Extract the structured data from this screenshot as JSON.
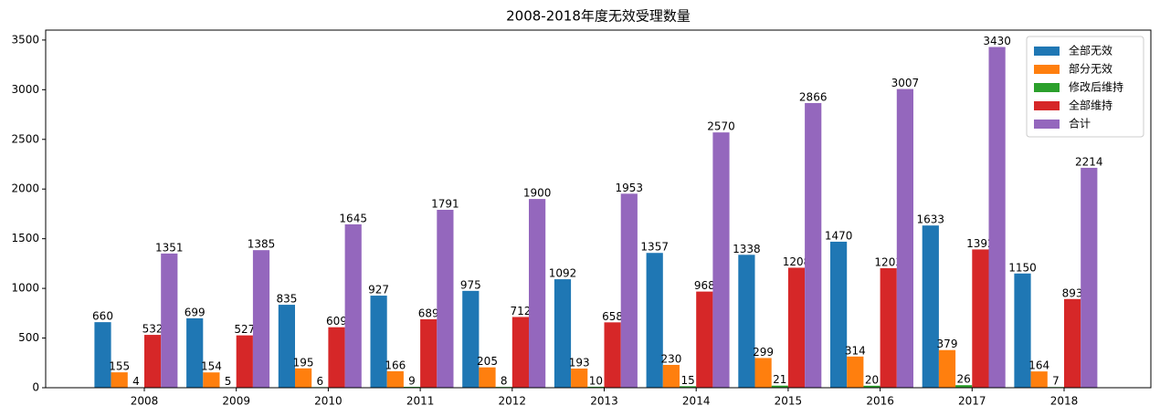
{
  "chart_data": {
    "type": "bar",
    "title": "2008-2018年度无效受理数量",
    "categories": [
      "2008",
      "2009",
      "2010",
      "2011",
      "2012",
      "2013",
      "2014",
      "2015",
      "2016",
      "2017",
      "2018"
    ],
    "series": [
      {
        "name": "全部无效",
        "color": "#1f77b4",
        "values": [
          660,
          699,
          835,
          927,
          975,
          1092,
          1357,
          1338,
          1470,
          1633,
          1150
        ]
      },
      {
        "name": "部分无效",
        "color": "#ff7f0e",
        "values": [
          155,
          154,
          195,
          166,
          205,
          193,
          230,
          299,
          314,
          379,
          164
        ]
      },
      {
        "name": "修改后维持",
        "color": "#2ca02c",
        "values": [
          4,
          5,
          6,
          9,
          8,
          10,
          15,
          21,
          20,
          26,
          7
        ]
      },
      {
        "name": "全部维持",
        "color": "#d62728",
        "values": [
          532,
          527,
          609,
          689,
          712,
          658,
          968,
          1208,
          1203,
          1392,
          893
        ]
      },
      {
        "name": "合计",
        "color": "#9467bd",
        "values": [
          1351,
          1385,
          1645,
          1791,
          1900,
          1953,
          2570,
          2866,
          3007,
          3430,
          2214
        ]
      }
    ],
    "ylim": [
      0,
      3600
    ],
    "yticks": [
      0,
      500,
      1000,
      1500,
      2000,
      2500,
      3000,
      3500
    ],
    "legend": "upper right",
    "grid": false
  }
}
